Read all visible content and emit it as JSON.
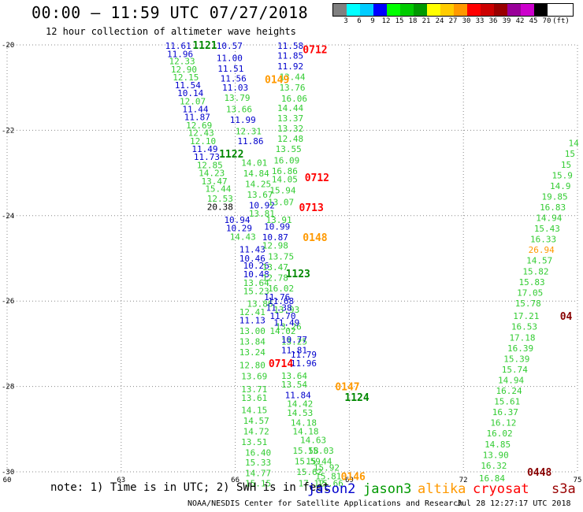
{
  "header": {
    "title": "00:00 – 11:59 UTC 07/27/2018",
    "subtitle": "12 hour collection of altimeter wave heights"
  },
  "legend": {
    "colors": [
      "#808080",
      "#00ffff",
      "#00ccff",
      "#0000ff",
      "#00ff00",
      "#00cc00",
      "#009900",
      "#ffff00",
      "#ffcc00",
      "#ff9900",
      "#ff0000",
      "#cc0000",
      "#990000",
      "#990099",
      "#cc00cc",
      "#000000"
    ],
    "labels": [
      "3",
      "6",
      "9",
      "12",
      "15",
      "18",
      "21",
      "24",
      "27",
      "30",
      "33",
      "36",
      "39",
      "42",
      "45",
      "70",
      "(ft)"
    ]
  },
  "footer": {
    "note": "note: 1) Time is in UTC; 2) SWH is in feet",
    "credit": "NOAA/NESDIS Center for Satellite Applications and Research",
    "generated": "Jul 28 12:27:17 UTC 2018",
    "satellites": [
      {
        "name": "jason2",
        "color": "#0000cc"
      },
      {
        "name": "jason3",
        "color": "#009900"
      },
      {
        "name": "altika",
        "color": "#ff9900"
      },
      {
        "name": "cryosat",
        "color": "#ff0000"
      },
      {
        "name": "s3a",
        "color": "#990000"
      }
    ]
  },
  "chart_data": {
    "type": "scatter",
    "xlim": [
      60,
      75
    ],
    "ylim": [
      -30,
      -20
    ],
    "x_ticks": [
      60,
      63,
      66,
      69,
      72,
      75
    ],
    "y_ticks": [
      -20,
      -22,
      -24,
      -26,
      -28,
      -30
    ],
    "grid": true,
    "colors": {
      "green": "#33cc33",
      "blue": "#0000cc",
      "dgreen": "#008800",
      "red": "#ff0000",
      "orange": "#ff9900",
      "dred": "#880000",
      "black": "#000000"
    },
    "points": [
      {
        "x": 64.5,
        "y": -20.02,
        "v": "11.61",
        "c": "blue"
      },
      {
        "x": 64.55,
        "y": -20.21,
        "v": "11.96",
        "c": "blue"
      },
      {
        "x": 64.6,
        "y": -20.38,
        "v": "12.33",
        "c": "green"
      },
      {
        "x": 64.65,
        "y": -20.57,
        "v": "12.90",
        "c": "green"
      },
      {
        "x": 64.7,
        "y": -20.76,
        "v": "12.15",
        "c": "green"
      },
      {
        "x": 64.75,
        "y": -20.94,
        "v": "11.54",
        "c": "blue"
      },
      {
        "x": 64.82,
        "y": -21.13,
        "v": "10.14",
        "c": "blue"
      },
      {
        "x": 64.88,
        "y": -21.32,
        "v": "12.07",
        "c": "green"
      },
      {
        "x": 64.95,
        "y": -21.5,
        "v": "11.44",
        "c": "blue"
      },
      {
        "x": 65.0,
        "y": -21.69,
        "v": "11.87",
        "c": "blue"
      },
      {
        "x": 65.05,
        "y": -21.88,
        "v": "12.69",
        "c": "green"
      },
      {
        "x": 65.1,
        "y": -22.06,
        "v": "12.43",
        "c": "green"
      },
      {
        "x": 65.15,
        "y": -22.25,
        "v": "12.10",
        "c": "green"
      },
      {
        "x": 65.2,
        "y": -22.44,
        "v": "11.49",
        "c": "blue"
      },
      {
        "x": 65.25,
        "y": -22.62,
        "v": "11.73",
        "c": "blue"
      },
      {
        "x": 65.33,
        "y": -22.81,
        "v": "12.85",
        "c": "green"
      },
      {
        "x": 65.38,
        "y": -23.0,
        "v": "14.23",
        "c": "green"
      },
      {
        "x": 65.45,
        "y": -23.19,
        "v": "13.47",
        "c": "green"
      },
      {
        "x": 65.55,
        "y": -23.37,
        "v": "15.44",
        "c": "green"
      },
      {
        "x": 65.6,
        "y": -23.6,
        "v": "12.53",
        "c": "green"
      },
      {
        "x": 65.6,
        "y": -23.79,
        "v": "20.38",
        "c": "black"
      },
      {
        "x": 65.85,
        "y": -20.02,
        "v": "10.57",
        "c": "blue"
      },
      {
        "x": 65.85,
        "y": -20.3,
        "v": "11.00",
        "c": "blue"
      },
      {
        "x": 65.88,
        "y": -20.55,
        "v": "11.51",
        "c": "blue"
      },
      {
        "x": 65.95,
        "y": -20.78,
        "v": "11.56",
        "c": "blue"
      },
      {
        "x": 66.0,
        "y": -21.0,
        "v": "11.03",
        "c": "blue"
      },
      {
        "x": 66.05,
        "y": -21.24,
        "v": "13.79",
        "c": "green"
      },
      {
        "x": 66.1,
        "y": -21.5,
        "v": "13.66",
        "c": "green"
      },
      {
        "x": 66.2,
        "y": -21.75,
        "v": "11.99",
        "c": "blue"
      },
      {
        "x": 66.35,
        "y": -22.02,
        "v": "12.31",
        "c": "green"
      },
      {
        "x": 66.4,
        "y": -22.25,
        "v": "11.86",
        "c": "blue"
      },
      {
        "x": 66.5,
        "y": -22.76,
        "v": "14.01",
        "c": "green"
      },
      {
        "x": 66.55,
        "y": -23.01,
        "v": "14.84",
        "c": "green"
      },
      {
        "x": 66.6,
        "y": -23.26,
        "v": "14.25",
        "c": "green"
      },
      {
        "x": 66.65,
        "y": -23.51,
        "v": "13.67",
        "c": "green"
      },
      {
        "x": 66.7,
        "y": -23.75,
        "v": "10.92",
        "c": "blue"
      },
      {
        "x": 66.7,
        "y": -23.95,
        "v": "13.81",
        "c": "green"
      },
      {
        "x": 66.05,
        "y": -24.1,
        "v": "10.94",
        "c": "blue"
      },
      {
        "x": 66.1,
        "y": -24.29,
        "v": "10.29",
        "c": "blue"
      },
      {
        "x": 66.2,
        "y": -24.49,
        "v": "14.43",
        "c": "green"
      },
      {
        "x": 66.45,
        "y": -24.79,
        "v": "11.43",
        "c": "blue"
      },
      {
        "x": 66.45,
        "y": -25.0,
        "v": "10.46",
        "c": "blue"
      },
      {
        "x": 66.55,
        "y": -25.17,
        "v": "10.26",
        "c": "blue"
      },
      {
        "x": 66.55,
        "y": -25.37,
        "v": "10.48",
        "c": "blue"
      },
      {
        "x": 66.55,
        "y": -25.57,
        "v": "13.64",
        "c": "green"
      },
      {
        "x": 66.55,
        "y": -25.77,
        "v": "15.23",
        "c": "green"
      },
      {
        "x": 66.65,
        "y": -26.06,
        "v": "13.86",
        "c": "green"
      },
      {
        "x": 66.45,
        "y": -26.25,
        "v": "12.41",
        "c": "green"
      },
      {
        "x": 66.45,
        "y": -26.45,
        "v": "11.13",
        "c": "blue"
      },
      {
        "x": 66.45,
        "y": -26.7,
        "v": "13.00",
        "c": "green"
      },
      {
        "x": 66.45,
        "y": -26.95,
        "v": "13.84",
        "c": "green"
      },
      {
        "x": 66.45,
        "y": -27.2,
        "v": "13.24",
        "c": "green"
      },
      {
        "x": 66.45,
        "y": -27.5,
        "v": "12.80",
        "c": "green"
      },
      {
        "x": 66.5,
        "y": -27.76,
        "v": "13.69",
        "c": "green"
      },
      {
        "x": 66.5,
        "y": -28.06,
        "v": "13.71",
        "c": "green"
      },
      {
        "x": 66.5,
        "y": -28.27,
        "v": "13.61",
        "c": "green"
      },
      {
        "x": 66.5,
        "y": -28.55,
        "v": "14.15",
        "c": "green"
      },
      {
        "x": 66.55,
        "y": -28.8,
        "v": "14.57",
        "c": "green"
      },
      {
        "x": 66.55,
        "y": -29.05,
        "v": "14.72",
        "c": "green"
      },
      {
        "x": 66.5,
        "y": -29.3,
        "v": "13.51",
        "c": "green"
      },
      {
        "x": 66.6,
        "y": -29.55,
        "v": "16.40",
        "c": "green"
      },
      {
        "x": 66.6,
        "y": -29.78,
        "v": "15.33",
        "c": "green"
      },
      {
        "x": 66.6,
        "y": -30.03,
        "v": "14.77",
        "c": "green"
      },
      {
        "x": 66.6,
        "y": -30.27,
        "v": "15.15",
        "c": "green"
      },
      {
        "x": 67.45,
        "y": -20.02,
        "v": "11.58",
        "c": "blue"
      },
      {
        "x": 67.45,
        "y": -20.25,
        "v": "11.85",
        "c": "blue"
      },
      {
        "x": 67.45,
        "y": -20.5,
        "v": "11.92",
        "c": "blue"
      },
      {
        "x": 67.5,
        "y": -20.75,
        "v": "13.44",
        "c": "green"
      },
      {
        "x": 67.5,
        "y": -21.0,
        "v": "13.76",
        "c": "green"
      },
      {
        "x": 67.55,
        "y": -21.25,
        "v": "16.06",
        "c": "green"
      },
      {
        "x": 67.45,
        "y": -21.48,
        "v": "14.44",
        "c": "green"
      },
      {
        "x": 67.45,
        "y": -21.72,
        "v": "13.37",
        "c": "green"
      },
      {
        "x": 67.45,
        "y": -21.96,
        "v": "13.32",
        "c": "green"
      },
      {
        "x": 67.45,
        "y": -22.2,
        "v": "12.48",
        "c": "green"
      },
      {
        "x": 67.4,
        "y": -22.44,
        "v": "13.55",
        "c": "green"
      },
      {
        "x": 67.35,
        "y": -22.7,
        "v": "16.09",
        "c": "green"
      },
      {
        "x": 67.3,
        "y": -22.95,
        "v": "16.86",
        "c": "green"
      },
      {
        "x": 67.3,
        "y": -23.15,
        "v": "14.05",
        "c": "green"
      },
      {
        "x": 67.25,
        "y": -23.4,
        "v": "15.94",
        "c": "green"
      },
      {
        "x": 67.2,
        "y": -23.68,
        "v": "13.07",
        "c": "green"
      },
      {
        "x": 67.15,
        "y": -24.1,
        "v": "13.91",
        "c": "green"
      },
      {
        "x": 67.1,
        "y": -24.25,
        "v": "10.99",
        "c": "blue"
      },
      {
        "x": 67.05,
        "y": -24.5,
        "v": "10.87",
        "c": "blue"
      },
      {
        "x": 67.05,
        "y": -24.7,
        "v": "12.98",
        "c": "green"
      },
      {
        "x": 67.2,
        "y": -24.95,
        "v": "13.75",
        "c": "green"
      },
      {
        "x": 67.05,
        "y": -25.2,
        "v": "13.47",
        "c": "green"
      },
      {
        "x": 67.05,
        "y": -25.45,
        "v": "12.78",
        "c": "green"
      },
      {
        "x": 67.2,
        "y": -25.7,
        "v": "16.02",
        "c": "green"
      },
      {
        "x": 67.2,
        "y": -26.0,
        "v": "11.68",
        "c": "blue"
      },
      {
        "x": 67.1,
        "y": -25.9,
        "v": "11.76",
        "c": "blue"
      },
      {
        "x": 67.35,
        "y": -26.2,
        "v": "13.93",
        "c": "green"
      },
      {
        "x": 67.15,
        "y": -26.15,
        "v": "11.38",
        "c": "blue"
      },
      {
        "x": 67.25,
        "y": -26.35,
        "v": "11.70",
        "c": "blue"
      },
      {
        "x": 67.4,
        "y": -26.6,
        "v": "13.26",
        "c": "green"
      },
      {
        "x": 67.35,
        "y": -26.5,
        "v": "11.49",
        "c": "blue"
      },
      {
        "x": 67.25,
        "y": -26.7,
        "v": "14.02",
        "c": "green"
      },
      {
        "x": 67.55,
        "y": -26.95,
        "v": "13.25",
        "c": "green"
      },
      {
        "x": 67.55,
        "y": -26.9,
        "v": "10.77",
        "c": "blue"
      },
      {
        "x": 67.55,
        "y": -27.15,
        "v": "11.81",
        "c": "blue"
      },
      {
        "x": 67.8,
        "y": -27.25,
        "v": "11.79",
        "c": "blue"
      },
      {
        "x": 67.8,
        "y": -27.45,
        "v": "11.96",
        "c": "blue"
      },
      {
        "x": 67.55,
        "y": -27.75,
        "v": "13.64",
        "c": "green"
      },
      {
        "x": 67.55,
        "y": -27.95,
        "v": "13.54",
        "c": "green"
      },
      {
        "x": 67.65,
        "y": -28.2,
        "v": "11.84",
        "c": "blue"
      },
      {
        "x": 67.7,
        "y": -28.4,
        "v": "14.42",
        "c": "green"
      },
      {
        "x": 67.7,
        "y": -28.62,
        "v": "14.53",
        "c": "green"
      },
      {
        "x": 67.8,
        "y": -28.85,
        "v": "14.18",
        "c": "green"
      },
      {
        "x": 67.85,
        "y": -29.05,
        "v": "14.18",
        "c": "green"
      },
      {
        "x": 68.05,
        "y": -29.25,
        "v": "14.63",
        "c": "green"
      },
      {
        "x": 67.85,
        "y": -29.5,
        "v": "15.58",
        "c": "green"
      },
      {
        "x": 68.25,
        "y": -29.5,
        "v": "15.03",
        "c": "green"
      },
      {
        "x": 68.2,
        "y": -29.75,
        "v": "15.44",
        "c": "green"
      },
      {
        "x": 67.9,
        "y": -29.75,
        "v": "15.59",
        "c": "green"
      },
      {
        "x": 68.4,
        "y": -29.9,
        "v": "15.92",
        "c": "green"
      },
      {
        "x": 67.95,
        "y": -30.0,
        "v": "15.62",
        "c": "green"
      },
      {
        "x": 68.45,
        "y": -30.1,
        "v": "15.81",
        "c": "green"
      },
      {
        "x": 68.0,
        "y": -30.27,
        "v": "17.12",
        "c": "green"
      },
      {
        "x": 68.5,
        "y": -30.27,
        "v": "15.66",
        "c": "green"
      },
      {
        "x": 74.9,
        "y": -22.3,
        "v": "14",
        "c": "green"
      },
      {
        "x": 74.8,
        "y": -22.55,
        "v": "15",
        "c": "green"
      },
      {
        "x": 74.7,
        "y": -22.8,
        "v": "15",
        "c": "green"
      },
      {
        "x": 74.6,
        "y": -23.05,
        "v": "15.9",
        "c": "green"
      },
      {
        "x": 74.55,
        "y": -23.3,
        "v": "14.9",
        "c": "green"
      },
      {
        "x": 74.4,
        "y": -23.55,
        "v": "19.85",
        "c": "green"
      },
      {
        "x": 74.35,
        "y": -23.8,
        "v": "16.83",
        "c": "green"
      },
      {
        "x": 74.25,
        "y": -24.05,
        "v": "14.94",
        "c": "green"
      },
      {
        "x": 74.2,
        "y": -24.3,
        "v": "15.43",
        "c": "green"
      },
      {
        "x": 74.1,
        "y": -24.55,
        "v": "16.33",
        "c": "green"
      },
      {
        "x": 74.05,
        "y": -24.8,
        "v": "26.94",
        "c": "orange"
      },
      {
        "x": 74.0,
        "y": -25.05,
        "v": "14.57",
        "c": "green"
      },
      {
        "x": 73.9,
        "y": -25.3,
        "v": "15.82",
        "c": "green"
      },
      {
        "x": 73.8,
        "y": -25.55,
        "v": "15.83",
        "c": "green"
      },
      {
        "x": 73.75,
        "y": -25.8,
        "v": "17.05",
        "c": "green"
      },
      {
        "x": 73.7,
        "y": -26.05,
        "v": "15.78",
        "c": "green"
      },
      {
        "x": 73.65,
        "y": -26.35,
        "v": "17.21",
        "c": "green"
      },
      {
        "x": 73.6,
        "y": -26.6,
        "v": "16.53",
        "c": "green"
      },
      {
        "x": 73.55,
        "y": -26.85,
        "v": "17.18",
        "c": "green"
      },
      {
        "x": 73.5,
        "y": -27.1,
        "v": "16.39",
        "c": "green"
      },
      {
        "x": 73.4,
        "y": -27.35,
        "v": "15.39",
        "c": "green"
      },
      {
        "x": 73.35,
        "y": -27.6,
        "v": "15.74",
        "c": "green"
      },
      {
        "x": 73.25,
        "y": -27.85,
        "v": "14.94",
        "c": "green"
      },
      {
        "x": 73.2,
        "y": -28.1,
        "v": "16.24",
        "c": "green"
      },
      {
        "x": 73.15,
        "y": -28.35,
        "v": "15.61",
        "c": "green"
      },
      {
        "x": 73.1,
        "y": -28.6,
        "v": "16.37",
        "c": "green"
      },
      {
        "x": 73.05,
        "y": -28.85,
        "v": "16.12",
        "c": "green"
      },
      {
        "x": 72.95,
        "y": -29.1,
        "v": "16.02",
        "c": "green"
      },
      {
        "x": 72.9,
        "y": -29.35,
        "v": "14.85",
        "c": "green"
      },
      {
        "x": 72.85,
        "y": -29.6,
        "v": "13.90",
        "c": "green"
      },
      {
        "x": 72.8,
        "y": -29.85,
        "v": "16.32",
        "c": "green"
      },
      {
        "x": 72.75,
        "y": -30.15,
        "v": "16.84",
        "c": "green"
      }
    ],
    "time_labels": [
      {
        "x": 65.2,
        "y": -20.0,
        "v": "1121",
        "c": "dgreen"
      },
      {
        "x": 68.1,
        "y": -20.1,
        "v": "0712",
        "c": "red"
      },
      {
        "x": 67.1,
        "y": -20.8,
        "v": "0149",
        "c": "orange"
      },
      {
        "x": 65.9,
        "y": -22.55,
        "v": "1122",
        "c": "dgreen"
      },
      {
        "x": 68.15,
        "y": -23.1,
        "v": "0712",
        "c": "red"
      },
      {
        "x": 68.0,
        "y": -23.8,
        "v": "0713",
        "c": "red"
      },
      {
        "x": 68.1,
        "y": -24.5,
        "v": "0148",
        "c": "orange"
      },
      {
        "x": 67.65,
        "y": -25.35,
        "v": "1123",
        "c": "dgreen"
      },
      {
        "x": 67.2,
        "y": -27.45,
        "v": "0714",
        "c": "red"
      },
      {
        "x": 68.95,
        "y": -28.0,
        "v": "0147",
        "c": "orange"
      },
      {
        "x": 69.2,
        "y": -28.25,
        "v": "1124",
        "c": "dgreen"
      },
      {
        "x": 69.1,
        "y": -30.1,
        "v": "0146",
        "c": "orange"
      },
      {
        "x": 74.7,
        "y": -26.35,
        "v": "04",
        "c": "dred"
      },
      {
        "x": 74.0,
        "y": -30.0,
        "v": "0448",
        "c": "dred"
      }
    ]
  }
}
